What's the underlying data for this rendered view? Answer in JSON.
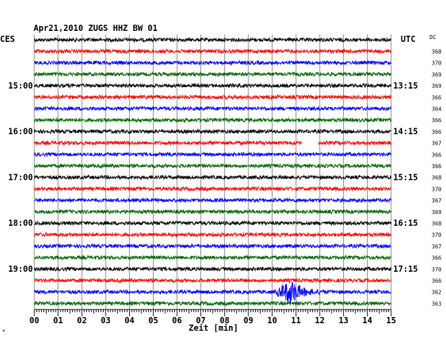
{
  "chart_data": {
    "type": "line",
    "title": "Apr21,2010   ZUGS HHZ BW 01",
    "left_header": "CES",
    "right_header": "UTC",
    "dc_header": "DC",
    "xlabel": "Zeit [min]",
    "xlim": [
      0,
      15
    ],
    "x_ticks": [
      "00",
      "01",
      "02",
      "03",
      "04",
      "05",
      "06",
      "07",
      "08",
      "09",
      "10",
      "11",
      "12",
      "13",
      "14",
      "15"
    ],
    "rows": 24,
    "trace_colors": [
      "#000000",
      "#ff0000",
      "#0000ff",
      "#006400"
    ],
    "left_time_labels": [
      {
        "row": 4,
        "label": "15:00"
      },
      {
        "row": 8,
        "label": "16:00"
      },
      {
        "row": 12,
        "label": "17:00"
      },
      {
        "row": 16,
        "label": "18:00"
      },
      {
        "row": 20,
        "label": "19:00"
      }
    ],
    "right_time_labels": [
      {
        "row": 4,
        "label": "13:15"
      },
      {
        "row": 8,
        "label": "14:15"
      },
      {
        "row": 12,
        "label": "15:15"
      },
      {
        "row": 16,
        "label": "16:15"
      },
      {
        "row": 20,
        "label": "17:15"
      }
    ],
    "dc_values": [
      "368",
      "370",
      "369",
      "369",
      "366",
      "364",
      "366",
      "366",
      "367",
      "366",
      "366",
      "368",
      "370",
      "367",
      "369",
      "368",
      "370",
      "367",
      "366",
      "370",
      "366",
      "362",
      "363"
    ],
    "gaps": [
      {
        "row": 9,
        "x_start": 11.25,
        "x_end": 11.95
      }
    ],
    "events": [
      {
        "row": 22,
        "x_start": 10.1,
        "x_peak": 10.8,
        "x_end": 12.4,
        "amplitude": "large"
      }
    ],
    "bottom_mark": "*"
  }
}
